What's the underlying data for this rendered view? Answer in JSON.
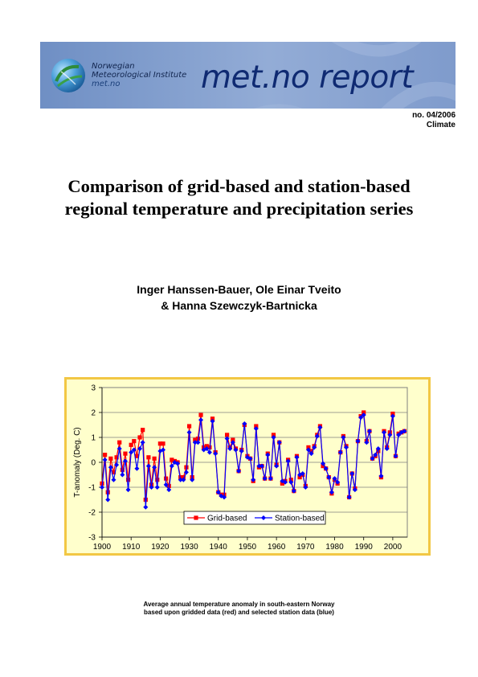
{
  "banner": {
    "institute_line1": "Norwegian",
    "institute_line2": "Meteorological Institute",
    "institute_url": "met.no",
    "logotype": "met.no report",
    "logo_icon": "globe-swirl-icon",
    "colors": {
      "banner": "#7f9bcc",
      "logotype": "#0f2a72"
    }
  },
  "report": {
    "number": "no. 04/2006",
    "category": "Climate"
  },
  "title": {
    "line1": "Comparison of grid-based and station-based",
    "line2": "regional temperature and precipitation series"
  },
  "authors": {
    "line1": "Inger Hanssen-Bauer, Ole Einar Tveito",
    "line2": "& Hanna Szewczyk-Bartnicka"
  },
  "caption": {
    "line1": "Average annual temperature anomaly in south-eastern Norway",
    "line2": "based upon gridded data (red) and selected station data (blue)"
  },
  "chart_data": {
    "type": "line",
    "title": "",
    "xlabel": "",
    "ylabel": "T-anomaly (Deg. C)",
    "xlim": [
      1900,
      2005
    ],
    "ylim": [
      -3,
      3
    ],
    "xticks": [
      1900,
      1910,
      1920,
      1930,
      1940,
      1950,
      1960,
      1970,
      1980,
      1990,
      2000
    ],
    "yticks": [
      -3,
      -2,
      -1,
      0,
      1,
      2,
      3
    ],
    "grid": true,
    "legend": "bottom-center",
    "x": [
      1900,
      1901,
      1902,
      1903,
      1904,
      1905,
      1906,
      1907,
      1908,
      1909,
      1910,
      1911,
      1912,
      1913,
      1914,
      1915,
      1916,
      1917,
      1918,
      1919,
      1920,
      1921,
      1922,
      1923,
      1924,
      1925,
      1926,
      1927,
      1928,
      1929,
      1930,
      1931,
      1932,
      1933,
      1934,
      1935,
      1936,
      1937,
      1938,
      1939,
      1940,
      1941,
      1942,
      1943,
      1944,
      1945,
      1946,
      1947,
      1948,
      1949,
      1950,
      1951,
      1952,
      1953,
      1954,
      1955,
      1956,
      1957,
      1958,
      1959,
      1960,
      1961,
      1962,
      1963,
      1964,
      1965,
      1966,
      1967,
      1968,
      1969,
      1970,
      1971,
      1972,
      1973,
      1974,
      1975,
      1976,
      1977,
      1978,
      1979,
      1980,
      1981,
      1982,
      1983,
      1984,
      1985,
      1986,
      1987,
      1988,
      1989,
      1990,
      1991,
      1992,
      1993,
      1994,
      1995,
      1996,
      1997,
      1998,
      1999,
      2000,
      2001,
      2002,
      2003,
      2004
    ],
    "series": [
      {
        "name": "Grid-based",
        "color": "#ff0000",
        "marker": "square",
        "values": [
          -0.85,
          0.3,
          -1.2,
          0.15,
          -0.4,
          0.2,
          0.8,
          -0.3,
          0.35,
          -0.7,
          0.7,
          0.85,
          0.25,
          1.0,
          1.3,
          -1.5,
          0.2,
          -0.9,
          0.15,
          -0.7,
          0.75,
          0.75,
          -0.65,
          -0.95,
          0.1,
          0.05,
          0.0,
          -0.6,
          -0.6,
          -0.2,
          1.45,
          -0.6,
          0.9,
          0.95,
          1.9,
          0.6,
          0.65,
          0.6,
          1.75,
          0.4,
          -1.2,
          -1.3,
          -1.3,
          1.1,
          0.6,
          0.9,
          0.55,
          -0.35,
          0.5,
          1.5,
          0.25,
          0.15,
          -0.75,
          1.45,
          -0.2,
          -0.15,
          -0.65,
          0.35,
          -0.65,
          1.1,
          -0.1,
          0.8,
          -0.85,
          -0.75,
          0.1,
          -0.7,
          -1.15,
          0.25,
          -0.6,
          -0.5,
          -0.95,
          0.6,
          0.45,
          0.65,
          1.1,
          1.45,
          -0.15,
          -0.25,
          -0.6,
          -1.25,
          -0.7,
          -0.85,
          0.4,
          1.05,
          0.65,
          -1.4,
          -0.45,
          -1.05,
          0.85,
          1.85,
          2.0,
          0.85,
          1.25,
          0.15,
          0.25,
          0.45,
          -0.6,
          1.25,
          0.6,
          1.2,
          1.95,
          0.25,
          1.15,
          1.2,
          1.25
        ]
      },
      {
        "name": "Station-based",
        "color": "#0000ff",
        "marker": "diamond",
        "values": [
          -1.0,
          0.1,
          -1.5,
          -0.2,
          -0.7,
          -0.1,
          0.55,
          -0.5,
          0.05,
          -1.1,
          0.4,
          0.5,
          -0.25,
          0.55,
          0.8,
          -1.8,
          -0.15,
          -1.0,
          -0.2,
          -1.0,
          0.45,
          0.5,
          -0.9,
          -1.1,
          -0.15,
          0.0,
          -0.05,
          -0.7,
          -0.7,
          -0.4,
          1.2,
          -0.7,
          0.8,
          0.8,
          1.7,
          0.5,
          0.55,
          0.4,
          1.65,
          0.35,
          -1.2,
          -1.35,
          -1.4,
          0.95,
          0.55,
          0.8,
          0.5,
          -0.35,
          0.45,
          1.55,
          0.2,
          0.15,
          -0.7,
          1.35,
          -0.15,
          -0.15,
          -0.65,
          0.3,
          -0.65,
          1.0,
          -0.15,
          0.8,
          -0.75,
          -0.8,
          0.05,
          -0.8,
          -1.15,
          0.2,
          -0.5,
          -0.45,
          -1.0,
          0.5,
          0.35,
          0.6,
          1.05,
          1.4,
          -0.05,
          -0.25,
          -0.6,
          -1.2,
          -0.65,
          -0.8,
          0.4,
          1.0,
          0.6,
          -1.4,
          -0.45,
          -1.1,
          0.85,
          1.8,
          1.9,
          0.8,
          1.25,
          0.15,
          0.3,
          0.55,
          -0.55,
          1.2,
          0.55,
          1.1,
          1.85,
          0.25,
          1.1,
          1.2,
          1.25
        ]
      }
    ]
  }
}
